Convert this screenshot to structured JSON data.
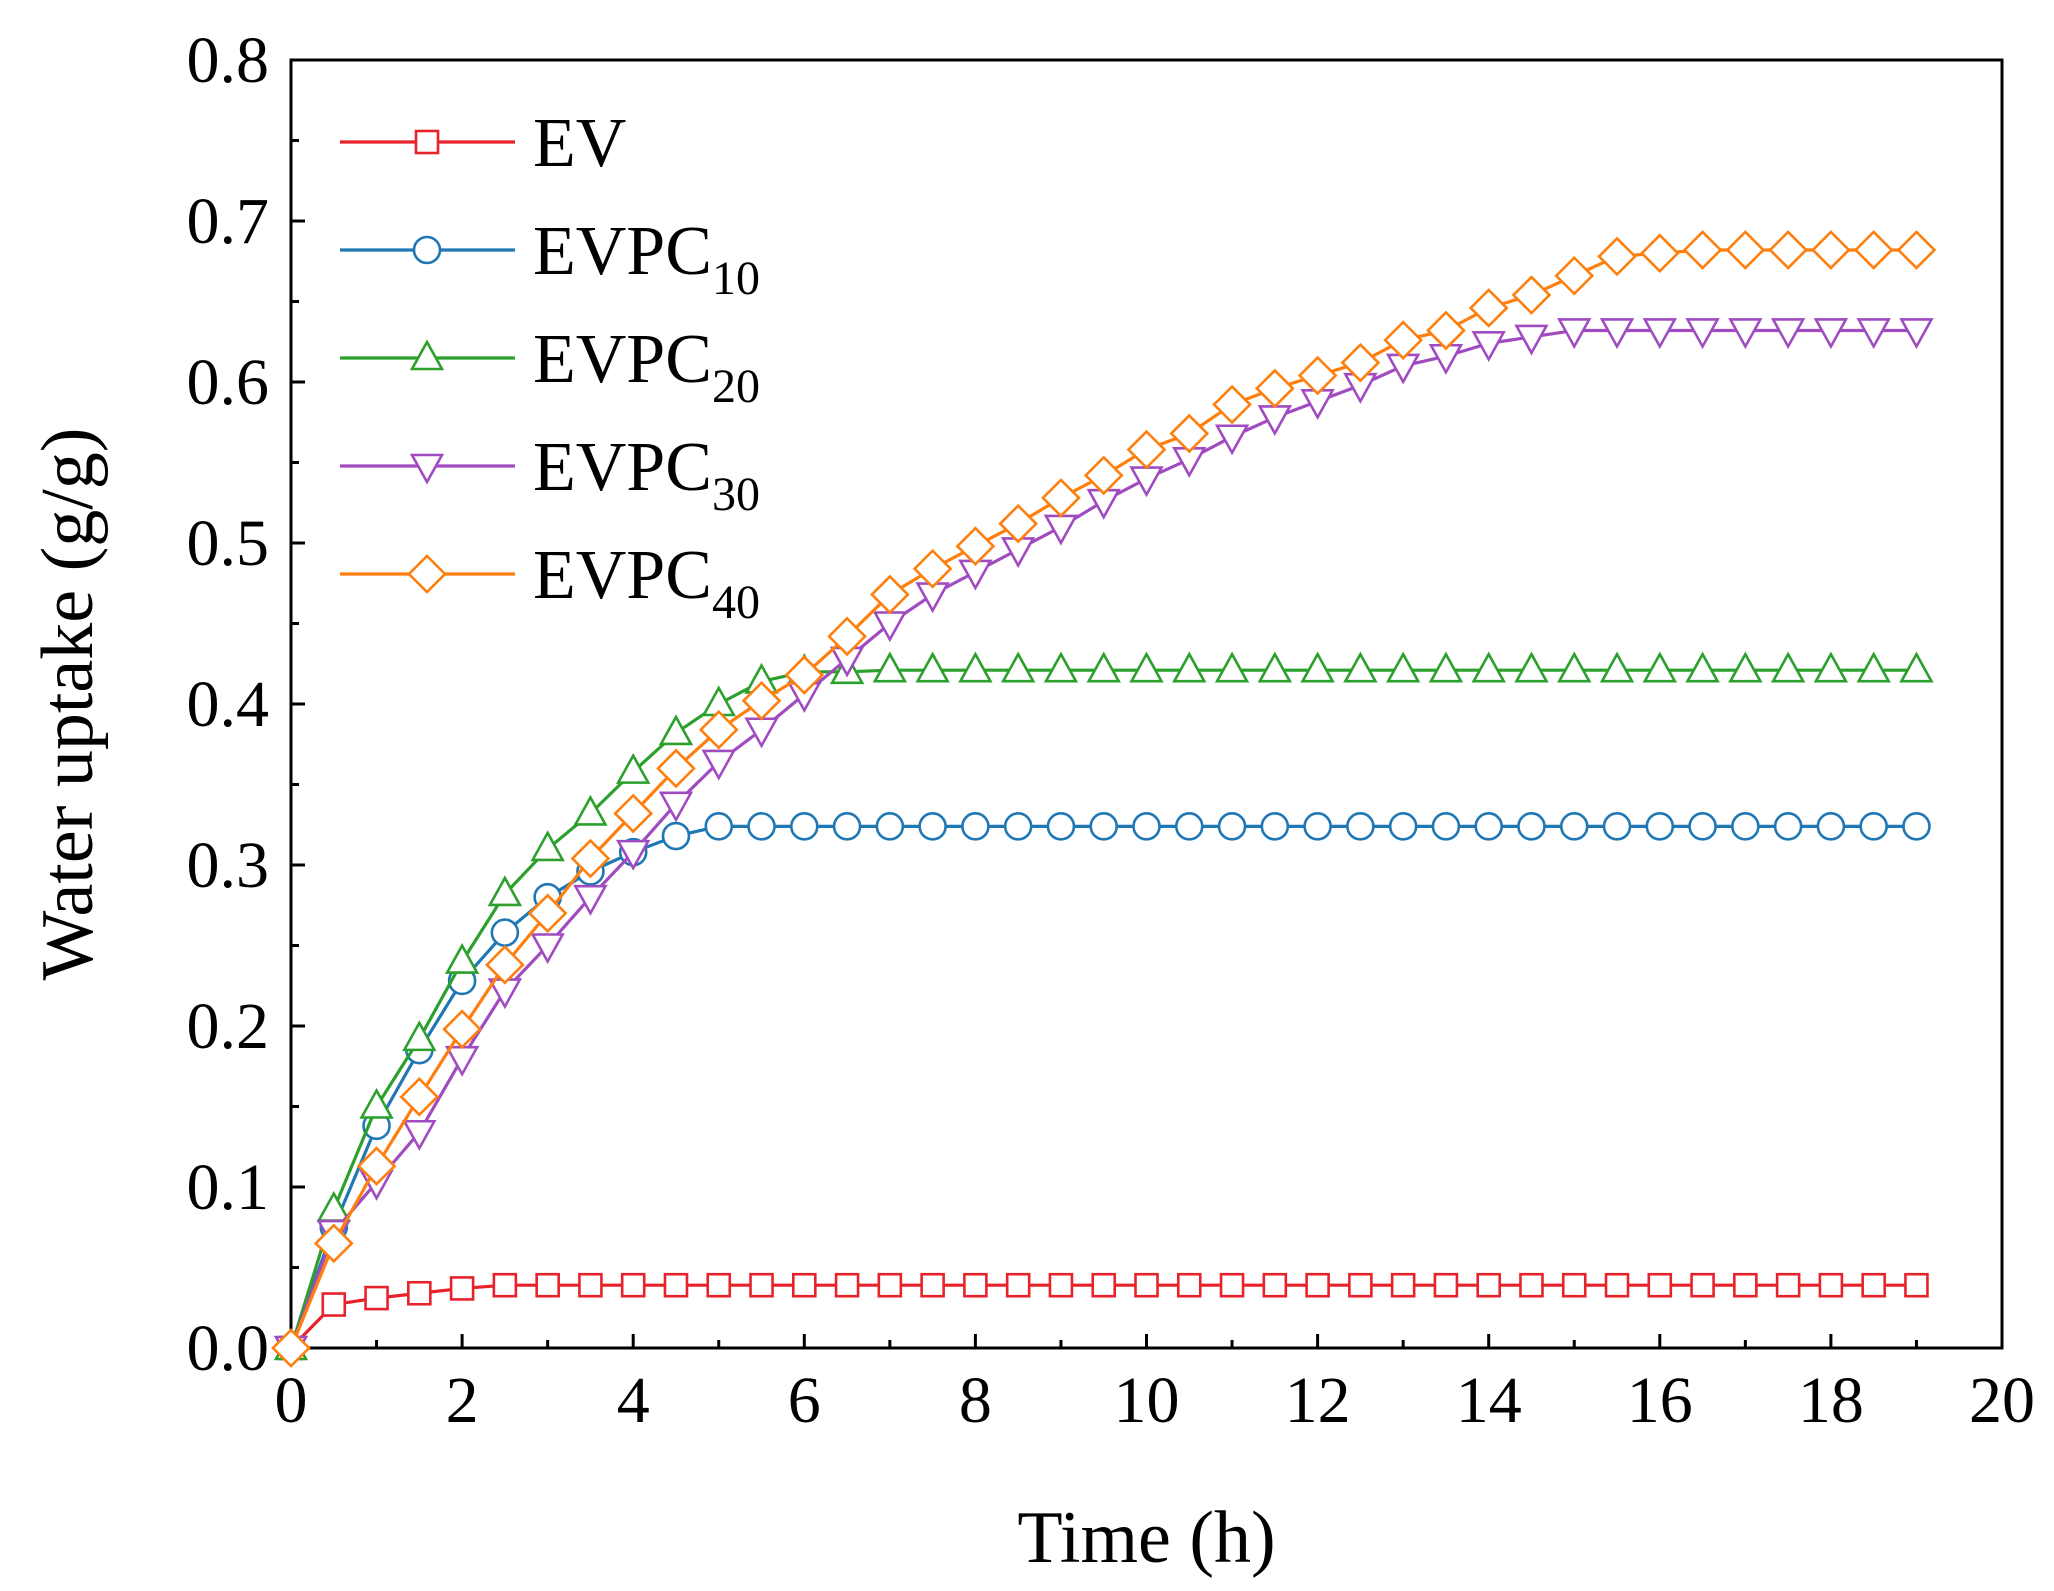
{
  "chart_data": {
    "type": "line",
    "title": "",
    "xlabel": "Time (h)",
    "ylabel": "Water uptake (g/g)",
    "xlim": [
      0,
      20
    ],
    "ylim": [
      0,
      0.8
    ],
    "x_ticks": [
      "0",
      "2",
      "4",
      "6",
      "8",
      "10",
      "12",
      "14",
      "16",
      "18",
      "20"
    ],
    "y_ticks": [
      "0.0",
      "0.1",
      "0.2",
      "0.3",
      "0.4",
      "0.5",
      "0.6",
      "0.7",
      "0.8"
    ],
    "grid": false,
    "legend_position": "top-left",
    "x": [
      0,
      0.5,
      1,
      1.5,
      2,
      2.5,
      3,
      3.5,
      4,
      4.5,
      5,
      5.5,
      6,
      6.5,
      7,
      7.5,
      8,
      8.5,
      9,
      9.5,
      10,
      10.5,
      11,
      11.5,
      12,
      12.5,
      13,
      13.5,
      14,
      14.5,
      15,
      15.5,
      16,
      16.5,
      17,
      17.5,
      18,
      18.5,
      19
    ],
    "series": [
      {
        "name": "EV",
        "label_main": "EV",
        "label_sub": "",
        "color": "#e8222a",
        "marker": "square",
        "values": [
          0,
          0.027,
          0.031,
          0.034,
          0.037,
          0.039,
          0.039,
          0.039,
          0.039,
          0.039,
          0.039,
          0.039,
          0.039,
          0.039,
          0.039,
          0.039,
          0.039,
          0.039,
          0.039,
          0.039,
          0.039,
          0.039,
          0.039,
          0.039,
          0.039,
          0.039,
          0.039,
          0.039,
          0.039,
          0.039,
          0.039,
          0.039,
          0.039,
          0.039,
          0.039,
          0.039,
          0.039,
          0.039,
          0.039
        ]
      },
      {
        "name": "EVPC10",
        "label_main": "EVPC",
        "label_sub": "10",
        "color": "#1f77b4",
        "marker": "circle",
        "values": [
          0,
          0.075,
          0.138,
          0.185,
          0.228,
          0.258,
          0.28,
          0.296,
          0.308,
          0.318,
          0.324,
          0.324,
          0.324,
          0.324,
          0.324,
          0.324,
          0.324,
          0.324,
          0.324,
          0.324,
          0.324,
          0.324,
          0.324,
          0.324,
          0.324,
          0.324,
          0.324,
          0.324,
          0.324,
          0.324,
          0.324,
          0.324,
          0.324,
          0.324,
          0.324,
          0.324,
          0.324,
          0.324,
          0.324
        ]
      },
      {
        "name": "EVPC20",
        "label_main": "EVPC",
        "label_sub": "20",
        "color": "#2ca02c",
        "marker": "triangle-up",
        "values": [
          0,
          0.086,
          0.15,
          0.192,
          0.24,
          0.282,
          0.31,
          0.332,
          0.358,
          0.382,
          0.4,
          0.414,
          0.42,
          0.42,
          0.421,
          0.421,
          0.421,
          0.421,
          0.421,
          0.421,
          0.421,
          0.421,
          0.421,
          0.421,
          0.421,
          0.421,
          0.421,
          0.421,
          0.421,
          0.421,
          0.421,
          0.421,
          0.421,
          0.421,
          0.421,
          0.421,
          0.421,
          0.421,
          0.421
        ]
      },
      {
        "name": "EVPC30",
        "label_main": "EVPC",
        "label_sub": "30",
        "color": "#a04cc0",
        "marker": "triangle-down",
        "values": [
          0,
          0.072,
          0.103,
          0.134,
          0.18,
          0.222,
          0.25,
          0.28,
          0.308,
          0.338,
          0.364,
          0.384,
          0.406,
          0.428,
          0.45,
          0.468,
          0.482,
          0.496,
          0.51,
          0.526,
          0.54,
          0.552,
          0.566,
          0.578,
          0.588,
          0.598,
          0.61,
          0.616,
          0.624,
          0.628,
          0.632,
          0.632,
          0.632,
          0.632,
          0.632,
          0.632,
          0.632,
          0.632,
          0.632
        ]
      },
      {
        "name": "EVPC40",
        "label_main": "EVPC",
        "label_sub": "40",
        "color": "#ff7f0e",
        "marker": "diamond",
        "values": [
          0,
          0.065,
          0.113,
          0.156,
          0.198,
          0.238,
          0.27,
          0.304,
          0.332,
          0.36,
          0.384,
          0.402,
          0.418,
          0.442,
          0.468,
          0.484,
          0.498,
          0.512,
          0.528,
          0.542,
          0.558,
          0.568,
          0.586,
          0.596,
          0.604,
          0.612,
          0.626,
          0.632,
          0.646,
          0.654,
          0.666,
          0.678,
          0.68,
          0.682,
          0.682,
          0.682,
          0.682,
          0.682,
          0.682
        ]
      }
    ]
  }
}
